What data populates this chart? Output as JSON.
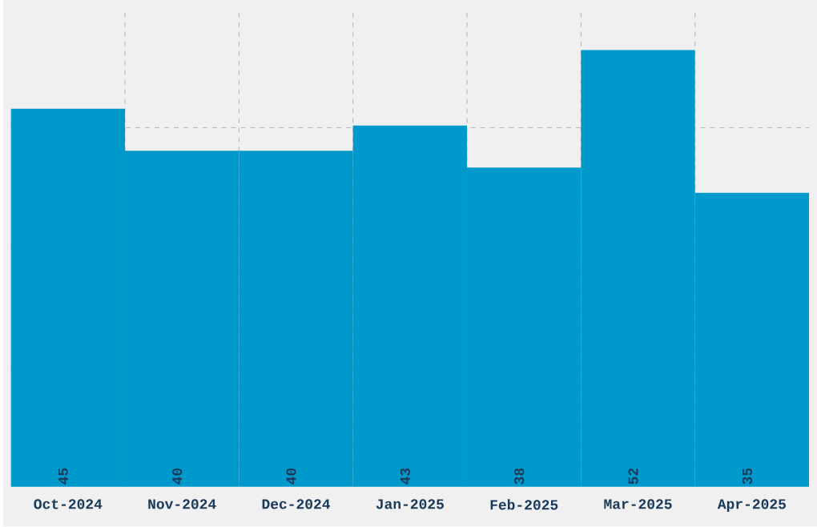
{
  "chart_data": {
    "type": "bar",
    "categories": [
      "Oct-2024",
      "Nov-2024",
      "Dec-2024",
      "Jan-2025",
      "Feb-2025",
      "Mar-2025",
      "Apr-2025"
    ],
    "values": [
      45,
      40,
      40,
      43,
      38,
      52,
      35
    ],
    "color": "#0099cc",
    "data_labels": true,
    "grid": true,
    "tick_labels": "x",
    "ylim": [
      0,
      57
    ],
    "yticks": [
      {
        "value": 14.25,
        "label": null
      },
      {
        "value": 28.5,
        "label": null
      },
      {
        "value": 42.75,
        "label": null
      }
    ]
  }
}
